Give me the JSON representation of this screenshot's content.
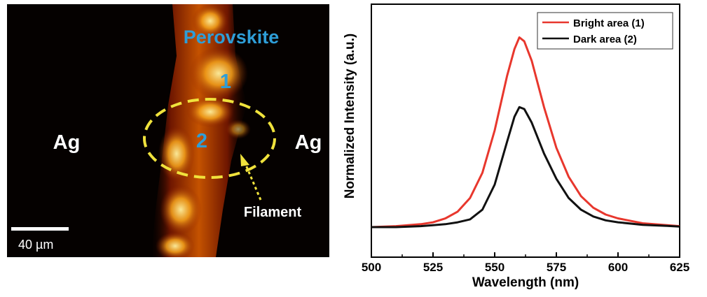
{
  "micrograph": {
    "label_material": "Perovskite",
    "label_left_electrode": "Ag",
    "label_right_electrode": "Ag",
    "region_1": "1",
    "region_2": "2",
    "label_filament": "Filament",
    "scale_bar": "40 µm",
    "colors": {
      "label_material": "#2e9ed8",
      "region_markers": "#2e9ed8",
      "ellipse": "#f0e23c",
      "text": "#ffffff"
    }
  },
  "chart_data": {
    "type": "line",
    "xlabel": "Wavelength (nm)",
    "ylabel": "Normalized Intensity (a.u.)",
    "xlim": [
      500,
      625
    ],
    "ylim": [
      0,
      1.05
    ],
    "xticks": [
      500,
      525,
      550,
      575,
      600,
      625
    ],
    "yticks_labeled": false,
    "grid": false,
    "legend_position": "top-right",
    "series": [
      {
        "name": "Bright area (1)",
        "color": "#e8372d",
        "x": [
          500,
          510,
          520,
          525,
          530,
          535,
          540,
          545,
          550,
          555,
          558,
          560,
          562,
          565,
          570,
          575,
          580,
          585,
          590,
          595,
          600,
          610,
          620,
          625
        ],
        "y": [
          0.0,
          0.005,
          0.015,
          0.025,
          0.045,
          0.08,
          0.15,
          0.28,
          0.5,
          0.78,
          0.92,
          0.98,
          0.96,
          0.86,
          0.62,
          0.41,
          0.26,
          0.16,
          0.1,
          0.065,
          0.045,
          0.02,
          0.01,
          0.005
        ]
      },
      {
        "name": "Dark area (2)",
        "color": "#111111",
        "x": [
          500,
          510,
          520,
          525,
          530,
          535,
          540,
          545,
          550,
          555,
          558,
          560,
          562,
          565,
          570,
          575,
          580,
          585,
          590,
          595,
          600,
          610,
          620,
          625
        ],
        "y": [
          0.0,
          0.0,
          0.005,
          0.01,
          0.015,
          0.025,
          0.04,
          0.09,
          0.22,
          0.44,
          0.57,
          0.62,
          0.61,
          0.54,
          0.38,
          0.25,
          0.15,
          0.09,
          0.055,
          0.035,
          0.025,
          0.012,
          0.006,
          0.003
        ]
      }
    ]
  }
}
